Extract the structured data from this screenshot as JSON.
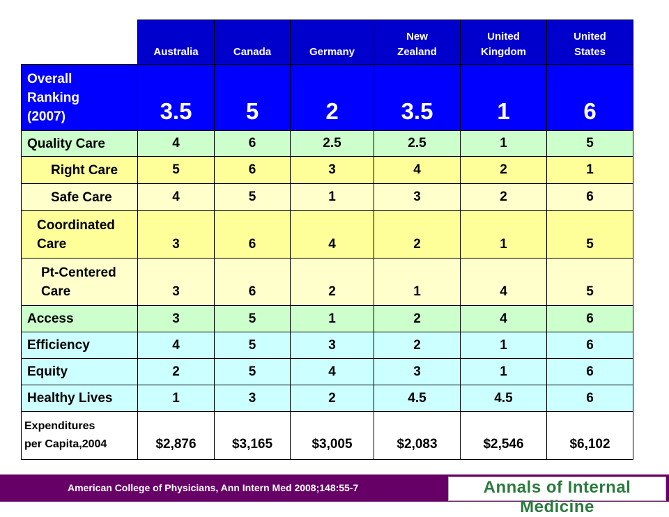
{
  "colors": {
    "overall_bg": "#0000ff",
    "header_bg": "#0000cc",
    "green_row": "#ccffcc",
    "yellow_row": "#ffff99",
    "light_yellow_row": "#ffffcc",
    "cyan_row": "#ccffff",
    "footer_bg": "#660066",
    "logo_text": "#2b7a3e"
  },
  "columns": [
    "Australia",
    "Canada",
    "Germany",
    "New\nZealand",
    "United\nKingdom",
    "United\nStates"
  ],
  "rows": [
    {
      "label": "Overall\nRanking\n(2007)",
      "values": [
        "3.5",
        "5",
        "2",
        "3.5",
        "1",
        "6"
      ]
    },
    {
      "label": "Quality Care",
      "values": [
        "4",
        "6",
        "2.5",
        "2.5",
        "1",
        "5"
      ]
    },
    {
      "label": "Right Care",
      "values": [
        "5",
        "6",
        "3",
        "4",
        "2",
        "1"
      ]
    },
    {
      "label": "Safe Care",
      "values": [
        "4",
        "5",
        "1",
        "3",
        "2",
        "6"
      ]
    },
    {
      "label": "Coordinated\nCare",
      "values": [
        "3",
        "6",
        "4",
        "2",
        "1",
        "5"
      ]
    },
    {
      "label": "Pt-Centered\nCare",
      "values": [
        "3",
        "6",
        "2",
        "1",
        "4",
        "5"
      ]
    },
    {
      "label": "Access",
      "values": [
        "3",
        "5",
        "1",
        "2",
        "4",
        "6"
      ]
    },
    {
      "label": "Efficiency",
      "values": [
        "4",
        "5",
        "3",
        "2",
        "1",
        "6"
      ]
    },
    {
      "label": "Equity",
      "values": [
        "2",
        "5",
        "4",
        "3",
        "1",
        "6"
      ]
    },
    {
      "label": "Healthy Lives",
      "values": [
        "1",
        "3",
        "2",
        "4.5",
        "4.5",
        "6"
      ]
    },
    {
      "label": "Expenditures\nper Capita,2004",
      "values": [
        "$2,876",
        "$3,165",
        "$3,005",
        "$2,083",
        "$2,546",
        "$6,102"
      ]
    }
  ],
  "footer": {
    "citation": "American College of Physicians,   Ann Intern Med 2008;148:55-7",
    "logo": "Annals of Internal Medicine"
  }
}
